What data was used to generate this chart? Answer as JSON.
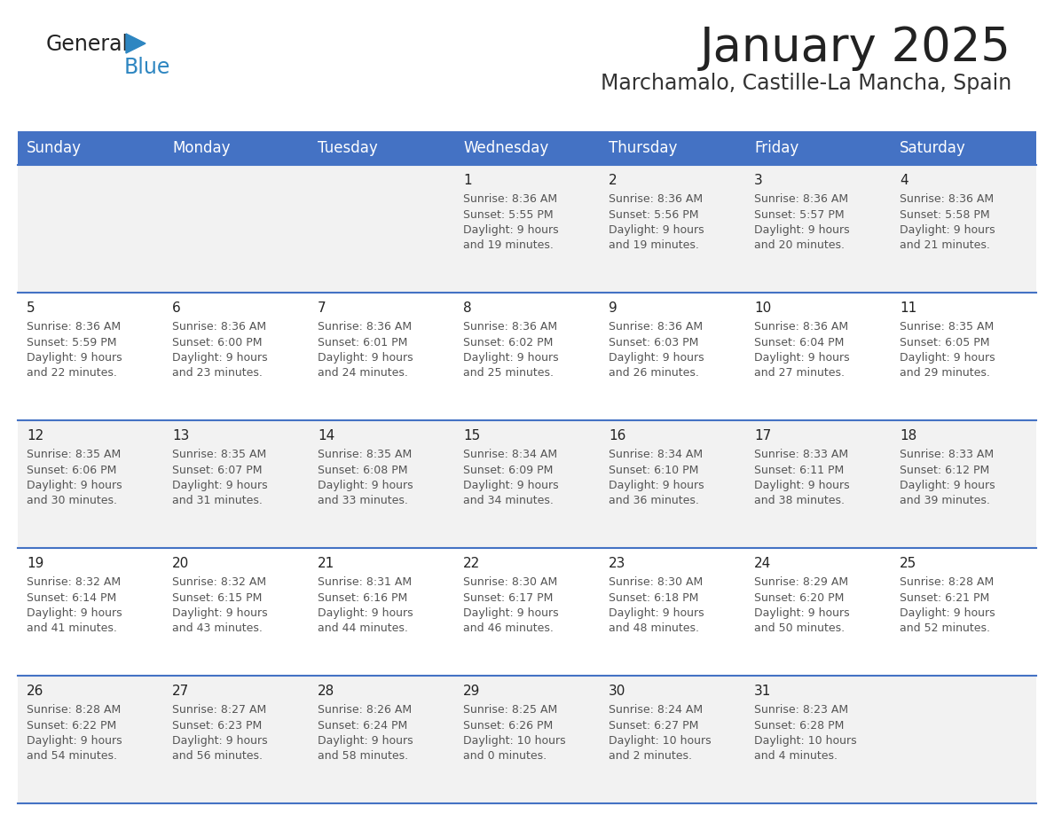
{
  "title": "January 2025",
  "subtitle": "Marchamalo, Castille-La Mancha, Spain",
  "days_of_week": [
    "Sunday",
    "Monday",
    "Tuesday",
    "Wednesday",
    "Thursday",
    "Friday",
    "Saturday"
  ],
  "header_bg": "#4472C4",
  "header_text": "#FFFFFF",
  "odd_row_bg": "#F2F2F2",
  "even_row_bg": "#FFFFFF",
  "cell_border": "#4472C4",
  "title_color": "#222222",
  "subtitle_color": "#333333",
  "day_num_color": "#222222",
  "cell_text_color": "#555555",
  "logo_general_color": "#222222",
  "logo_blue_color": "#2E86C1",
  "calendar_data": [
    {
      "day": 1,
      "col": 3,
      "row": 0,
      "sunrise": "8:36 AM",
      "sunset": "5:55 PM",
      "daylight_hours": 9,
      "daylight_minutes": 19
    },
    {
      "day": 2,
      "col": 4,
      "row": 0,
      "sunrise": "8:36 AM",
      "sunset": "5:56 PM",
      "daylight_hours": 9,
      "daylight_minutes": 19
    },
    {
      "day": 3,
      "col": 5,
      "row": 0,
      "sunrise": "8:36 AM",
      "sunset": "5:57 PM",
      "daylight_hours": 9,
      "daylight_minutes": 20
    },
    {
      "day": 4,
      "col": 6,
      "row": 0,
      "sunrise": "8:36 AM",
      "sunset": "5:58 PM",
      "daylight_hours": 9,
      "daylight_minutes": 21
    },
    {
      "day": 5,
      "col": 0,
      "row": 1,
      "sunrise": "8:36 AM",
      "sunset": "5:59 PM",
      "daylight_hours": 9,
      "daylight_minutes": 22
    },
    {
      "day": 6,
      "col": 1,
      "row": 1,
      "sunrise": "8:36 AM",
      "sunset": "6:00 PM",
      "daylight_hours": 9,
      "daylight_minutes": 23
    },
    {
      "day": 7,
      "col": 2,
      "row": 1,
      "sunrise": "8:36 AM",
      "sunset": "6:01 PM",
      "daylight_hours": 9,
      "daylight_minutes": 24
    },
    {
      "day": 8,
      "col": 3,
      "row": 1,
      "sunrise": "8:36 AM",
      "sunset": "6:02 PM",
      "daylight_hours": 9,
      "daylight_minutes": 25
    },
    {
      "day": 9,
      "col": 4,
      "row": 1,
      "sunrise": "8:36 AM",
      "sunset": "6:03 PM",
      "daylight_hours": 9,
      "daylight_minutes": 26
    },
    {
      "day": 10,
      "col": 5,
      "row": 1,
      "sunrise": "8:36 AM",
      "sunset": "6:04 PM",
      "daylight_hours": 9,
      "daylight_minutes": 27
    },
    {
      "day": 11,
      "col": 6,
      "row": 1,
      "sunrise": "8:35 AM",
      "sunset": "6:05 PM",
      "daylight_hours": 9,
      "daylight_minutes": 29
    },
    {
      "day": 12,
      "col": 0,
      "row": 2,
      "sunrise": "8:35 AM",
      "sunset": "6:06 PM",
      "daylight_hours": 9,
      "daylight_minutes": 30
    },
    {
      "day": 13,
      "col": 1,
      "row": 2,
      "sunrise": "8:35 AM",
      "sunset": "6:07 PM",
      "daylight_hours": 9,
      "daylight_minutes": 31
    },
    {
      "day": 14,
      "col": 2,
      "row": 2,
      "sunrise": "8:35 AM",
      "sunset": "6:08 PM",
      "daylight_hours": 9,
      "daylight_minutes": 33
    },
    {
      "day": 15,
      "col": 3,
      "row": 2,
      "sunrise": "8:34 AM",
      "sunset": "6:09 PM",
      "daylight_hours": 9,
      "daylight_minutes": 34
    },
    {
      "day": 16,
      "col": 4,
      "row": 2,
      "sunrise": "8:34 AM",
      "sunset": "6:10 PM",
      "daylight_hours": 9,
      "daylight_minutes": 36
    },
    {
      "day": 17,
      "col": 5,
      "row": 2,
      "sunrise": "8:33 AM",
      "sunset": "6:11 PM",
      "daylight_hours": 9,
      "daylight_minutes": 38
    },
    {
      "day": 18,
      "col": 6,
      "row": 2,
      "sunrise": "8:33 AM",
      "sunset": "6:12 PM",
      "daylight_hours": 9,
      "daylight_minutes": 39
    },
    {
      "day": 19,
      "col": 0,
      "row": 3,
      "sunrise": "8:32 AM",
      "sunset": "6:14 PM",
      "daylight_hours": 9,
      "daylight_minutes": 41
    },
    {
      "day": 20,
      "col": 1,
      "row": 3,
      "sunrise": "8:32 AM",
      "sunset": "6:15 PM",
      "daylight_hours": 9,
      "daylight_minutes": 43
    },
    {
      "day": 21,
      "col": 2,
      "row": 3,
      "sunrise": "8:31 AM",
      "sunset": "6:16 PM",
      "daylight_hours": 9,
      "daylight_minutes": 44
    },
    {
      "day": 22,
      "col": 3,
      "row": 3,
      "sunrise": "8:30 AM",
      "sunset": "6:17 PM",
      "daylight_hours": 9,
      "daylight_minutes": 46
    },
    {
      "day": 23,
      "col": 4,
      "row": 3,
      "sunrise": "8:30 AM",
      "sunset": "6:18 PM",
      "daylight_hours": 9,
      "daylight_minutes": 48
    },
    {
      "day": 24,
      "col": 5,
      "row": 3,
      "sunrise": "8:29 AM",
      "sunset": "6:20 PM",
      "daylight_hours": 9,
      "daylight_minutes": 50
    },
    {
      "day": 25,
      "col": 6,
      "row": 3,
      "sunrise": "8:28 AM",
      "sunset": "6:21 PM",
      "daylight_hours": 9,
      "daylight_minutes": 52
    },
    {
      "day": 26,
      "col": 0,
      "row": 4,
      "sunrise": "8:28 AM",
      "sunset": "6:22 PM",
      "daylight_hours": 9,
      "daylight_minutes": 54
    },
    {
      "day": 27,
      "col": 1,
      "row": 4,
      "sunrise": "8:27 AM",
      "sunset": "6:23 PM",
      "daylight_hours": 9,
      "daylight_minutes": 56
    },
    {
      "day": 28,
      "col": 2,
      "row": 4,
      "sunrise": "8:26 AM",
      "sunset": "6:24 PM",
      "daylight_hours": 9,
      "daylight_minutes": 58
    },
    {
      "day": 29,
      "col": 3,
      "row": 4,
      "sunrise": "8:25 AM",
      "sunset": "6:26 PM",
      "daylight_hours": 10,
      "daylight_minutes": 0
    },
    {
      "day": 30,
      "col": 4,
      "row": 4,
      "sunrise": "8:24 AM",
      "sunset": "6:27 PM",
      "daylight_hours": 10,
      "daylight_minutes": 2
    },
    {
      "day": 31,
      "col": 5,
      "row": 4,
      "sunrise": "8:23 AM",
      "sunset": "6:28 PM",
      "daylight_hours": 10,
      "daylight_minutes": 4
    }
  ]
}
